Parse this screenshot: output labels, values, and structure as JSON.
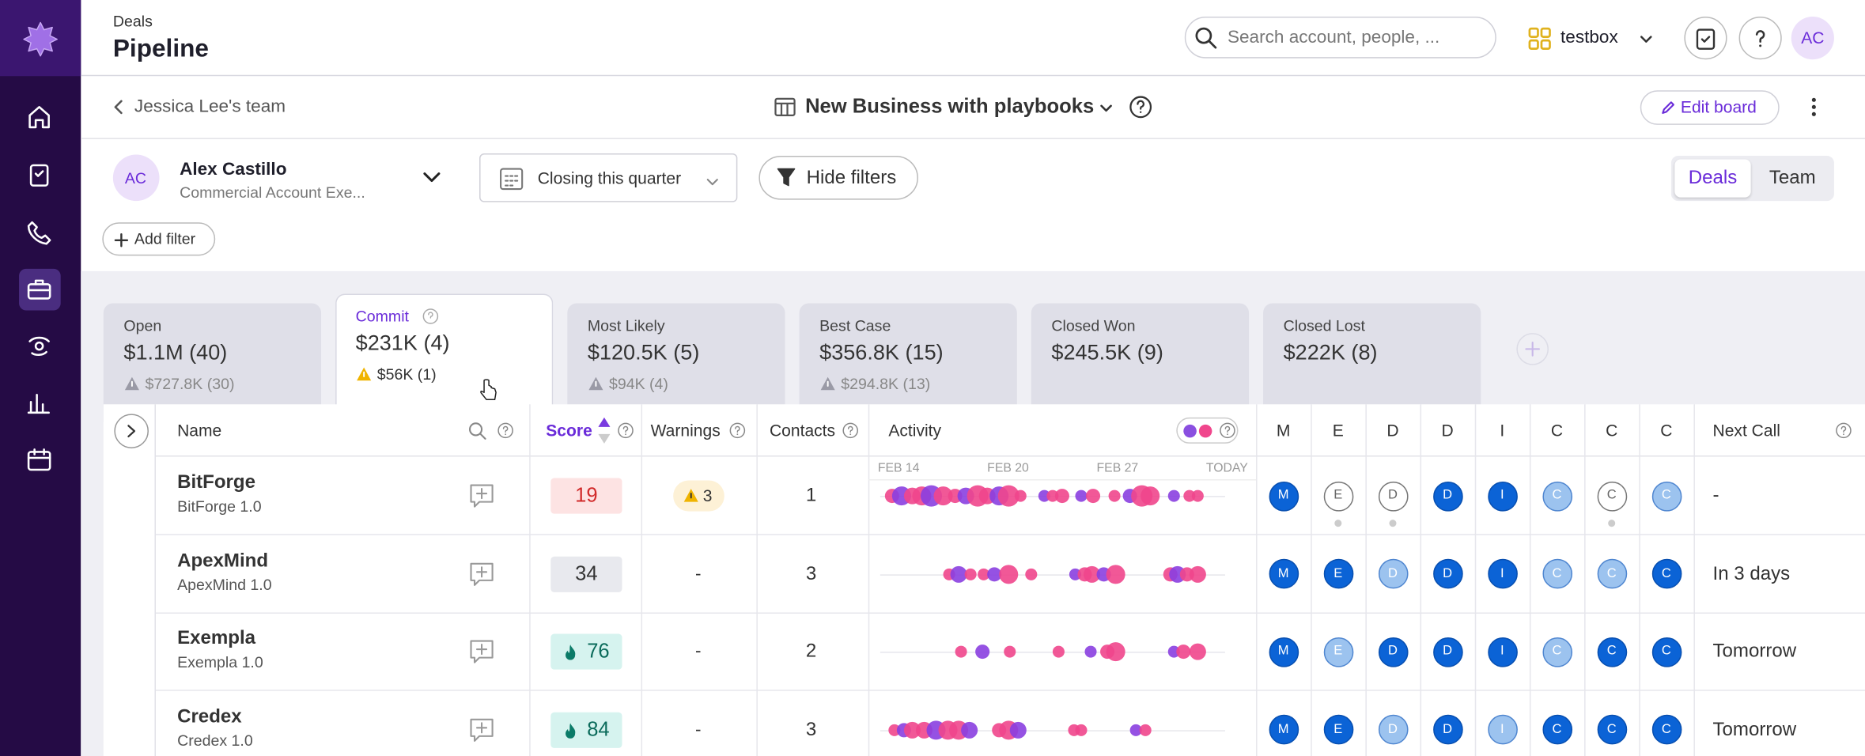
{
  "header": {
    "breadcrumb": "Deals",
    "title": "Pipeline",
    "search_placeholder": "Search account, people, ...",
    "workspace": "testbox",
    "avatar": "AC"
  },
  "board": {
    "back": "Jessica Lee's team",
    "name": "New Business with playbooks",
    "edit": "Edit board"
  },
  "filters": {
    "user_initials": "AC",
    "user_name": "Alex Castillo",
    "user_role": "Commercial Account Exe...",
    "period": "Closing this quarter",
    "hide_filters": "Hide filters",
    "add_filter": "Add filter",
    "toggle": [
      "Deals",
      "Team"
    ]
  },
  "stages": [
    {
      "name": "Open",
      "amount": "$1.1M (40)",
      "warning": "$727.8K (30)"
    },
    {
      "name": "Commit",
      "amount": "$231K (4)",
      "warning": "$56K (1)",
      "active": true
    },
    {
      "name": "Most Likely",
      "amount": "$120.5K (5)",
      "warning": "$94K (4)"
    },
    {
      "name": "Best Case",
      "amount": "$356.8K (15)",
      "warning": "$294.8K (13)"
    },
    {
      "name": "Closed Won",
      "amount": "$245.5K (9)"
    },
    {
      "name": "Closed Lost",
      "amount": "$222K (8)"
    }
  ],
  "table": {
    "columns": [
      "Name",
      "Score",
      "Warnings",
      "Contacts",
      "Activity",
      "M",
      "E",
      "D",
      "D",
      "I",
      "C",
      "C",
      "C",
      "Next Call"
    ],
    "timeline": [
      "FEB 14",
      "FEB 20",
      "FEB 27",
      "TODAY"
    ],
    "rows": [
      {
        "name": "BitForge",
        "sub": "BitForge 1.0",
        "score": 19,
        "score_style": "low",
        "warnings": "3",
        "contacts": 1,
        "roles": [
          "filled",
          "outline",
          "outline",
          "filled",
          "filled",
          "light",
          "outline",
          "light"
        ],
        "next_call": "-"
      },
      {
        "name": "ApexMind",
        "sub": "ApexMind 1.0",
        "score": 34,
        "score_style": "mid",
        "warnings": "-",
        "contacts": 3,
        "roles": [
          "filled",
          "filled",
          "light",
          "filled",
          "filled",
          "light",
          "light",
          "filled"
        ],
        "next_call": "In 3 days"
      },
      {
        "name": "Exempla",
        "sub": "Exempla 1.0",
        "score": 76,
        "score_style": "high",
        "warnings": "-",
        "contacts": 2,
        "roles": [
          "filled",
          "light",
          "filled",
          "filled",
          "filled",
          "light",
          "filled",
          "filled"
        ],
        "next_call": "Tomorrow"
      },
      {
        "name": "Credex",
        "sub": "Credex 1.0",
        "score": 84,
        "score_style": "high",
        "warnings": "-",
        "contacts": 3,
        "roles": [
          "filled",
          "filled",
          "light",
          "filled",
          "light",
          "filled",
          "filled",
          "filled"
        ],
        "next_call": "Tomorrow"
      }
    ]
  }
}
